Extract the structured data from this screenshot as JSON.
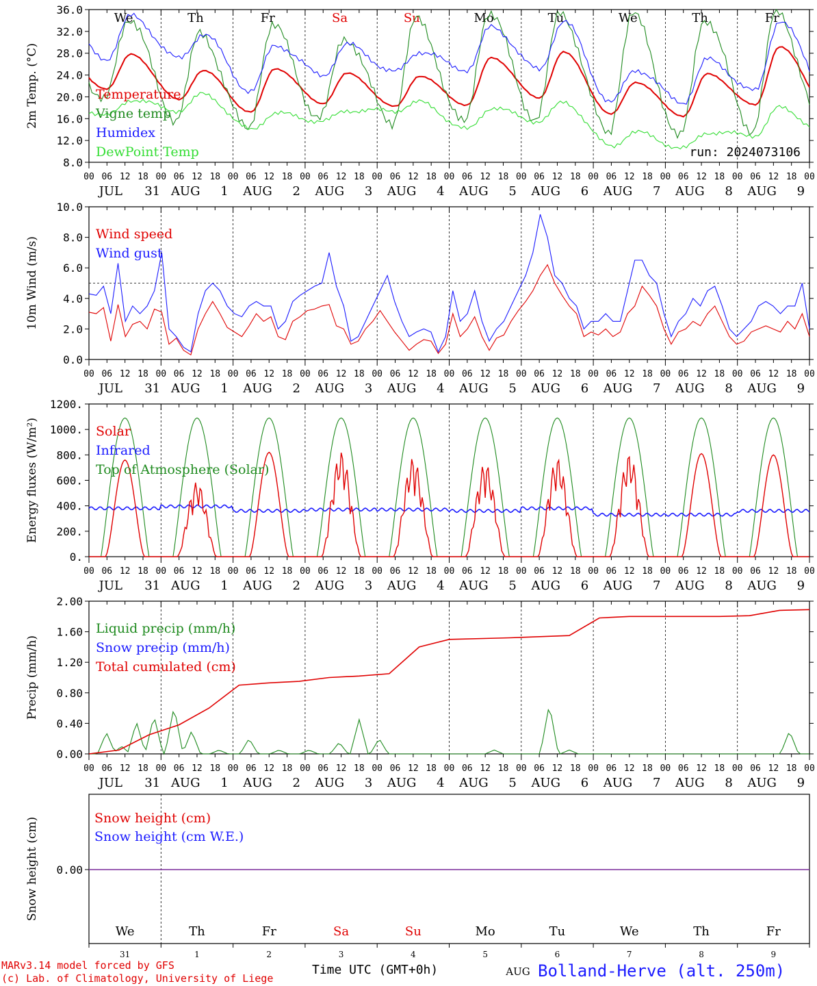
{
  "colors": {
    "red": "#e00000",
    "green": "#1e8a1e",
    "blue": "#1a1aff",
    "lightgreen": "#33dd33",
    "purple": "#7a2a9a",
    "grid": "#555555"
  },
  "days": [
    "We",
    "Th",
    "Fr",
    "Sa",
    "Su",
    "Mo",
    "Tu",
    "We",
    "Th",
    "Fr"
  ],
  "weekend_indices": [
    3,
    4
  ],
  "hour_ticks": [
    "00",
    "06",
    "12",
    "18"
  ],
  "date_labels": [
    {
      "month": "JUL",
      "day": "31"
    },
    {
      "month": "AUG",
      "day": "1"
    },
    {
      "month": "AUG",
      "day": "2"
    },
    {
      "month": "AUG",
      "day": "3"
    },
    {
      "month": "AUG",
      "day": "4"
    },
    {
      "month": "AUG",
      "day": "5"
    },
    {
      "month": "AUG",
      "day": "6"
    },
    {
      "month": "AUG",
      "day": "7"
    },
    {
      "month": "AUG",
      "day": "8"
    },
    {
      "month": "AUG",
      "day": "9"
    }
  ],
  "snow_day_numbers": [
    "31",
    "1",
    "2",
    "3",
    "4",
    "5",
    "6",
    "7",
    "8",
    "9"
  ],
  "snow_month": "AUG",
  "footer": {
    "model": "MARv3.14 model forced by GFS",
    "lab": "(c) Lab. of Climatology, University of Liege",
    "time_label": "Time UTC (GMT+0h)",
    "station": "Bolland-Herve (alt. 250m)"
  },
  "chart_data": [
    {
      "id": "temp",
      "type": "line",
      "ylabel": "2m Temp. (°C)",
      "ylim": [
        8,
        36
      ],
      "yticks": [
        "8.0",
        "12.0",
        "16.0",
        "20.0",
        "24.0",
        "28.0",
        "32.0",
        "36.0"
      ],
      "legend": [
        {
          "name": "Temperature",
          "color": "red"
        },
        {
          "name": "Vigne temp",
          "color": "green"
        },
        {
          "name": "Humidex",
          "color": "blue"
        },
        {
          "name": "DewPoint Temp",
          "color": "lightgreen"
        }
      ],
      "run_label": "run: 2024073106",
      "series_daily": [
        {
          "name": "Temperature",
          "color": "red",
          "min": [
            21.5,
            19.5,
            17.2,
            18.8,
            18.2,
            18.5,
            19.8,
            16.8,
            16.5,
            18.5
          ],
          "max": [
            27.8,
            24.8,
            25.2,
            24.3,
            23.8,
            27.2,
            28.2,
            22.7,
            24.2,
            29.2
          ]
        },
        {
          "name": "Vigne temp",
          "color": "green",
          "min": [
            19.0,
            16.0,
            14.0,
            16.0,
            15.5,
            15.0,
            16.0,
            13.5,
            12.5,
            14.0
          ],
          "max": [
            34.5,
            31.5,
            33.0,
            31.0,
            34.0,
            35.5,
            35.5,
            35.0,
            34.5,
            35.5
          ]
        },
        {
          "name": "Humidex",
          "color": "blue",
          "min": [
            27.0,
            27.0,
            21.0,
            24.0,
            24.5,
            25.0,
            25.0,
            19.0,
            19.0,
            21.0
          ],
          "max": [
            34.8,
            31.5,
            29.5,
            29.5,
            28.3,
            32.8,
            33.8,
            25.0,
            26.8,
            34.0
          ]
        },
        {
          "name": "DewPoint Temp",
          "color": "lightgreen",
          "min": [
            16.5,
            17.5,
            14.0,
            15.5,
            17.5,
            14.0,
            15.5,
            11.0,
            10.5,
            13.0
          ],
          "max": [
            19.5,
            20.5,
            17.0,
            17.5,
            19.0,
            18.0,
            19.0,
            13.5,
            13.5,
            18.0
          ]
        }
      ]
    },
    {
      "id": "wind",
      "type": "line",
      "ylabel": "10m Wind (m/s)",
      "ylim": [
        0,
        10
      ],
      "yticks": [
        "0.0",
        "2.0",
        "4.0",
        "6.0",
        "8.0",
        "10.0"
      ],
      "refline": 5,
      "legend": [
        {
          "name": "Wind speed",
          "color": "red"
        },
        {
          "name": "Wind gust",
          "color": "blue"
        }
      ],
      "series": [
        {
          "name": "Wind speed",
          "color": "red",
          "values": [
            3.1,
            3.0,
            3.4,
            1.2,
            3.6,
            1.5,
            2.3,
            2.5,
            2.0,
            3.3,
            3.1,
            1.0,
            1.4,
            0.6,
            0.3,
            2.0,
            3.0,
            3.8,
            3.0,
            2.1,
            1.8,
            1.5,
            2.2,
            3.0,
            2.5,
            2.8,
            1.5,
            1.3,
            2.5,
            2.8,
            3.2,
            3.3,
            3.5,
            3.6,
            2.2,
            2.0,
            1.0,
            1.2,
            2.0,
            2.5,
            3.2,
            2.5,
            1.8,
            1.2,
            0.6,
            1.0,
            1.3,
            1.2,
            0.4,
            1.0,
            3.0,
            1.5,
            2.0,
            2.8,
            1.5,
            0.6,
            1.4,
            1.6,
            2.5,
            3.2,
            3.8,
            4.5,
            5.5,
            6.2,
            5.0,
            4.2,
            3.5,
            3.0,
            1.5,
            1.8,
            1.6,
            2.0,
            1.5,
            1.8,
            3.0,
            3.5,
            4.8,
            4.2,
            3.5,
            2.0,
            1.0,
            1.8,
            2.0,
            2.5,
            2.2,
            3.0,
            3.5,
            2.5,
            1.5,
            1.0,
            1.2,
            1.8,
            2.0,
            2.2,
            2.0,
            1.8,
            2.5,
            2.0,
            3.0,
            1.5
          ]
        },
        {
          "name": "Wind gust",
          "color": "blue",
          "values": [
            4.3,
            4.2,
            4.8,
            3.0,
            6.3,
            2.5,
            3.5,
            3.0,
            3.5,
            4.5,
            7.0,
            2.0,
            1.5,
            0.8,
            0.5,
            3.0,
            4.5,
            5.0,
            4.5,
            3.5,
            3.0,
            2.8,
            3.5,
            3.8,
            3.5,
            3.5,
            2.0,
            2.5,
            3.8,
            4.2,
            4.5,
            4.8,
            5.0,
            7.0,
            4.8,
            3.5,
            1.2,
            1.5,
            2.5,
            3.5,
            4.5,
            5.5,
            3.8,
            2.5,
            1.5,
            1.8,
            2.0,
            1.8,
            0.5,
            1.5,
            4.5,
            2.5,
            3.0,
            4.5,
            2.5,
            1.2,
            2.0,
            2.5,
            3.5,
            4.5,
            5.5,
            7.0,
            9.5,
            8.0,
            5.5,
            5.0,
            4.0,
            3.5,
            2.0,
            2.5,
            2.5,
            3.0,
            2.5,
            2.5,
            4.5,
            6.5,
            6.5,
            5.5,
            5.0,
            3.0,
            1.5,
            2.5,
            3.0,
            4.0,
            3.5,
            4.5,
            4.8,
            3.5,
            2.0,
            1.5,
            2.0,
            2.5,
            3.5,
            3.8,
            3.5,
            3.0,
            3.5,
            3.5,
            5.0,
            2.0
          ]
        }
      ]
    },
    {
      "id": "energy",
      "type": "line",
      "ylabel": "Energy fluxes (W/m²)",
      "ylim": [
        0,
        1200
      ],
      "yticks": [
        "0.",
        "200.",
        "400.",
        "600.",
        "800.",
        "1000.",
        "1200."
      ],
      "legend": [
        {
          "name": "Solar",
          "color": "red"
        },
        {
          "name": "Infrared",
          "color": "blue"
        },
        {
          "name": "Top of Atmosphere (Solar)",
          "color": "green"
        }
      ],
      "toa_daily_peak": 1090,
      "solar_daily_peak": [
        760,
        590,
        820,
        830,
        780,
        740,
        780,
        810,
        810,
        800
      ],
      "solar_cloudy_days": [
        1,
        3,
        4,
        5,
        6,
        7
      ],
      "infrared_daily": [
        380,
        395,
        360,
        370,
        370,
        360,
        380,
        330,
        330,
        360
      ]
    },
    {
      "id": "precip",
      "type": "line",
      "ylabel": "Precip (mm/h)",
      "ylim": [
        0,
        2.0
      ],
      "yticks": [
        "0.00",
        "0.40",
        "0.80",
        "1.20",
        "1.60",
        "2.00"
      ],
      "legend": [
        {
          "name": "Liquid precip (mm/h)",
          "color": "green"
        },
        {
          "name": "Snow precip (mm/h)",
          "color": "blue"
        },
        {
          "name": "Total cumulated (cm)",
          "color": "red"
        }
      ],
      "cumulated": [
        [
          0,
          0
        ],
        [
          12,
          0.05
        ],
        [
          24,
          0.25
        ],
        [
          36,
          0.38
        ],
        [
          48,
          0.6
        ],
        [
          60,
          0.9
        ],
        [
          72,
          0.93
        ],
        [
          84,
          0.95
        ],
        [
          96,
          1.0
        ],
        [
          108,
          1.02
        ],
        [
          120,
          1.05
        ],
        [
          132,
          1.4
        ],
        [
          144,
          1.5
        ],
        [
          168,
          1.52
        ],
        [
          192,
          1.55
        ],
        [
          204,
          1.78
        ],
        [
          216,
          1.8
        ],
        [
          228,
          1.8
        ],
        [
          240,
          1.8
        ],
        [
          252,
          1.8
        ],
        [
          264,
          1.81
        ],
        [
          276,
          1.88
        ],
        [
          288,
          1.89
        ]
      ],
      "liquid_events": [
        [
          7,
          0.28
        ],
        [
          13,
          0.1
        ],
        [
          19,
          0.42
        ],
        [
          26,
          0.5
        ],
        [
          34,
          0.62
        ],
        [
          41,
          0.3
        ],
        [
          52,
          0.05
        ],
        [
          64,
          0.2
        ],
        [
          76,
          0.05
        ],
        [
          88,
          0.05
        ],
        [
          100,
          0.15
        ],
        [
          108,
          0.45
        ],
        [
          116,
          0.2
        ],
        [
          162,
          0.05
        ],
        [
          184,
          0.65
        ],
        [
          192,
          0.05
        ],
        [
          280,
          0.3
        ]
      ]
    },
    {
      "id": "snow",
      "type": "line",
      "ylabel": "Snow height (cm)",
      "yticks": [
        "0.00"
      ],
      "legend": [
        {
          "name": "Snow height (cm)",
          "color": "red"
        },
        {
          "name": "Snow height (cm W.E.)",
          "color": "blue"
        }
      ],
      "values_cm": 0.0
    }
  ]
}
